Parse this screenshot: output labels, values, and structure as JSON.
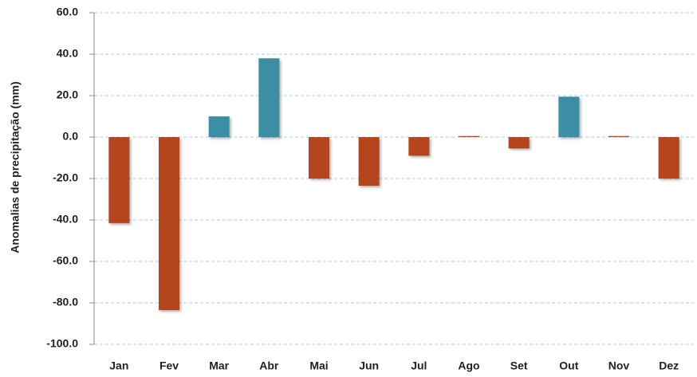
{
  "chart_data": {
    "type": "bar",
    "ylabel": "Anomalias de precipitação (mm)",
    "categories": [
      "Jan",
      "Fev",
      "Mar",
      "Abr",
      "Mai",
      "Jun",
      "Jul",
      "Ago",
      "Set",
      "Out",
      "Nov",
      "Dez"
    ],
    "values": [
      -41.5,
      -83.5,
      10,
      38,
      -20,
      -23.5,
      -9,
      0.5,
      -5.5,
      19.5,
      0.5,
      -20
    ],
    "colors": [
      "#b4441d",
      "#b4441d",
      "#3b8ea3",
      "#3b8ea3",
      "#b4441d",
      "#b4441d",
      "#b4441d",
      "#b4441d",
      "#b4441d",
      "#3b8ea3",
      "#b4441d",
      "#b4441d"
    ],
    "ylim": [
      -100,
      60
    ],
    "yticks": [
      {
        "value": -100,
        "label": "-100.0"
      },
      {
        "value": -80,
        "label": "-80.0"
      },
      {
        "value": -60,
        "label": "-60.0"
      },
      {
        "value": -40,
        "label": "-40.0"
      },
      {
        "value": -20,
        "label": "-20.0"
      },
      {
        "value": 0,
        "label": "0.0"
      },
      {
        "value": 20,
        "label": "20.0"
      },
      {
        "value": 40,
        "label": "40.0"
      },
      {
        "value": 60,
        "label": "60.0"
      }
    ],
    "grid": true
  }
}
